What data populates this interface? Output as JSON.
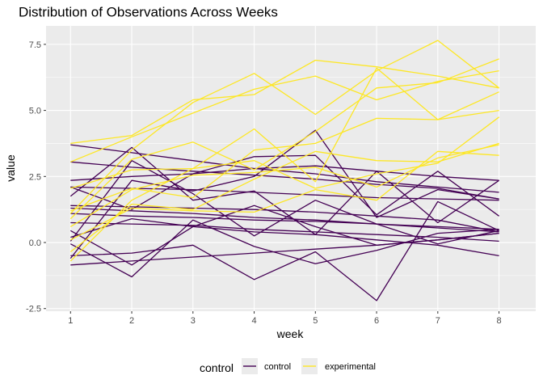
{
  "chart_data": {
    "type": "line",
    "title": "Distribution of Observations Across Weeks",
    "xlabel": "week",
    "ylabel": "value",
    "x": [
      1,
      2,
      3,
      4,
      5,
      6,
      7,
      8
    ],
    "x_ticks": [
      "1",
      "2",
      "3",
      "4",
      "5",
      "6",
      "7",
      "8"
    ],
    "y_ticks": [
      -2.5,
      0.0,
      2.5,
      5.0,
      7.5
    ],
    "y_tick_labels": [
      "-2.5",
      "0.0",
      "2.5",
      "5.0",
      "7.5"
    ],
    "xlim": [
      0.6,
      8.6
    ],
    "ylim": [
      -2.6,
      8.2
    ],
    "grid": true,
    "legend": {
      "title": "control",
      "position": "bottom",
      "entries": [
        {
          "label": "control",
          "color": "#440154"
        },
        {
          "label": "experimental",
          "color": "#FDE725"
        }
      ]
    },
    "colors": {
      "control": "#440154",
      "experimental": "#FDE725",
      "panel": "#EBEBEB",
      "grid": "#FFFFFF"
    },
    "series": [
      {
        "group": "control",
        "values": [
          3.7,
          3.4,
          3.1,
          2.8,
          2.6,
          2.3,
          2.1,
          1.9
        ]
      },
      {
        "group": "control",
        "values": [
          3.05,
          2.85,
          2.7,
          2.55,
          2.4,
          2.2,
          2.05,
          1.65
        ]
      },
      {
        "group": "control",
        "values": [
          2.35,
          2.5,
          2.6,
          2.8,
          2.9,
          2.7,
          2.5,
          2.35
        ]
      },
      {
        "group": "control",
        "values": [
          2.1,
          1.25,
          2.6,
          3.25,
          3.3,
          1.05,
          2.7,
          1.0
        ]
      },
      {
        "group": "control",
        "values": [
          1.75,
          3.6,
          1.6,
          1.95,
          0.3,
          2.7,
          0.75,
          2.35
        ]
      },
      {
        "group": "control",
        "values": [
          1.3,
          1.2,
          1.1,
          0.95,
          0.85,
          0.7,
          0.55,
          0.4
        ]
      },
      {
        "group": "control",
        "values": [
          1.1,
          1.0,
          0.95,
          0.85,
          0.8,
          0.7,
          0.6,
          0.5
        ]
      },
      {
        "group": "control",
        "values": [
          0.75,
          0.7,
          0.65,
          0.5,
          0.4,
          0.3,
          0.2,
          0.05
        ]
      },
      {
        "group": "control",
        "values": [
          0.45,
          -0.85,
          0.6,
          1.4,
          0.6,
          -0.1,
          0.1,
          0.35
        ]
      },
      {
        "group": "control",
        "values": [
          0.05,
          3.1,
          1.85,
          0.25,
          1.6,
          0.7,
          -0.05,
          0.45
        ]
      },
      {
        "group": "control",
        "values": [
          -0.6,
          2.35,
          1.95,
          2.5,
          4.25,
          0.95,
          2.0,
          1.65
        ]
      },
      {
        "group": "control",
        "values": [
          -0.85,
          -0.7,
          -0.55,
          -0.4,
          -0.25,
          -0.1,
          0.1,
          0.35
        ]
      },
      {
        "group": "control",
        "values": [
          -0.5,
          -0.4,
          -0.1,
          -1.4,
          -0.35,
          -2.2,
          1.55,
          0.45
        ]
      },
      {
        "group": "control",
        "values": [
          -0.05,
          -1.3,
          0.85,
          -0.15,
          -0.8,
          -0.3,
          0.35,
          0.5
        ]
      },
      {
        "group": "control",
        "values": [
          2.1,
          2.05,
          2.0,
          1.9,
          1.8,
          1.7,
          1.65,
          1.6
        ]
      },
      {
        "group": "control",
        "values": [
          0.2,
          0.9,
          0.6,
          0.4,
          0.3,
          0.1,
          -0.1,
          -0.5
        ]
      },
      {
        "group": "control",
        "values": [
          1.4,
          1.35,
          1.3,
          1.25,
          1.15,
          1.0,
          0.85,
          0.4
        ]
      },
      {
        "group": "experimental",
        "values": [
          3.75,
          4.05,
          5.4,
          5.6,
          6.9,
          6.65,
          6.3,
          5.85
        ]
      },
      {
        "group": "experimental",
        "values": [
          3.05,
          4.0,
          4.9,
          5.8,
          6.3,
          5.4,
          6.1,
          6.5
        ]
      },
      {
        "group": "experimental",
        "values": [
          1.1,
          3.5,
          5.3,
          6.4,
          4.85,
          6.5,
          7.65,
          5.85
        ]
      },
      {
        "group": "experimental",
        "values": [
          0.9,
          3.15,
          3.8,
          2.75,
          4.2,
          5.85,
          6.05,
          6.95
        ]
      },
      {
        "group": "experimental",
        "values": [
          2.05,
          2.75,
          2.8,
          4.3,
          2.3,
          6.6,
          4.65,
          5.0
        ]
      },
      {
        "group": "experimental",
        "values": [
          1.2,
          2.05,
          1.7,
          3.5,
          3.75,
          4.7,
          4.65,
          5.7
        ]
      },
      {
        "group": "experimental",
        "values": [
          -0.35,
          1.45,
          1.25,
          2.4,
          3.45,
          3.1,
          3.05,
          3.75
        ]
      },
      {
        "group": "experimental",
        "values": [
          0.1,
          1.3,
          1.2,
          1.15,
          2.0,
          1.6,
          3.45,
          3.3
        ]
      },
      {
        "group": "experimental",
        "values": [
          -0.7,
          1.6,
          2.8,
          3.1,
          2.05,
          2.6,
          3.0,
          4.75
        ]
      },
      {
        "group": "experimental",
        "values": [
          0.6,
          2.0,
          2.55,
          2.65,
          2.85,
          2.1,
          3.2,
          3.7
        ]
      }
    ]
  }
}
